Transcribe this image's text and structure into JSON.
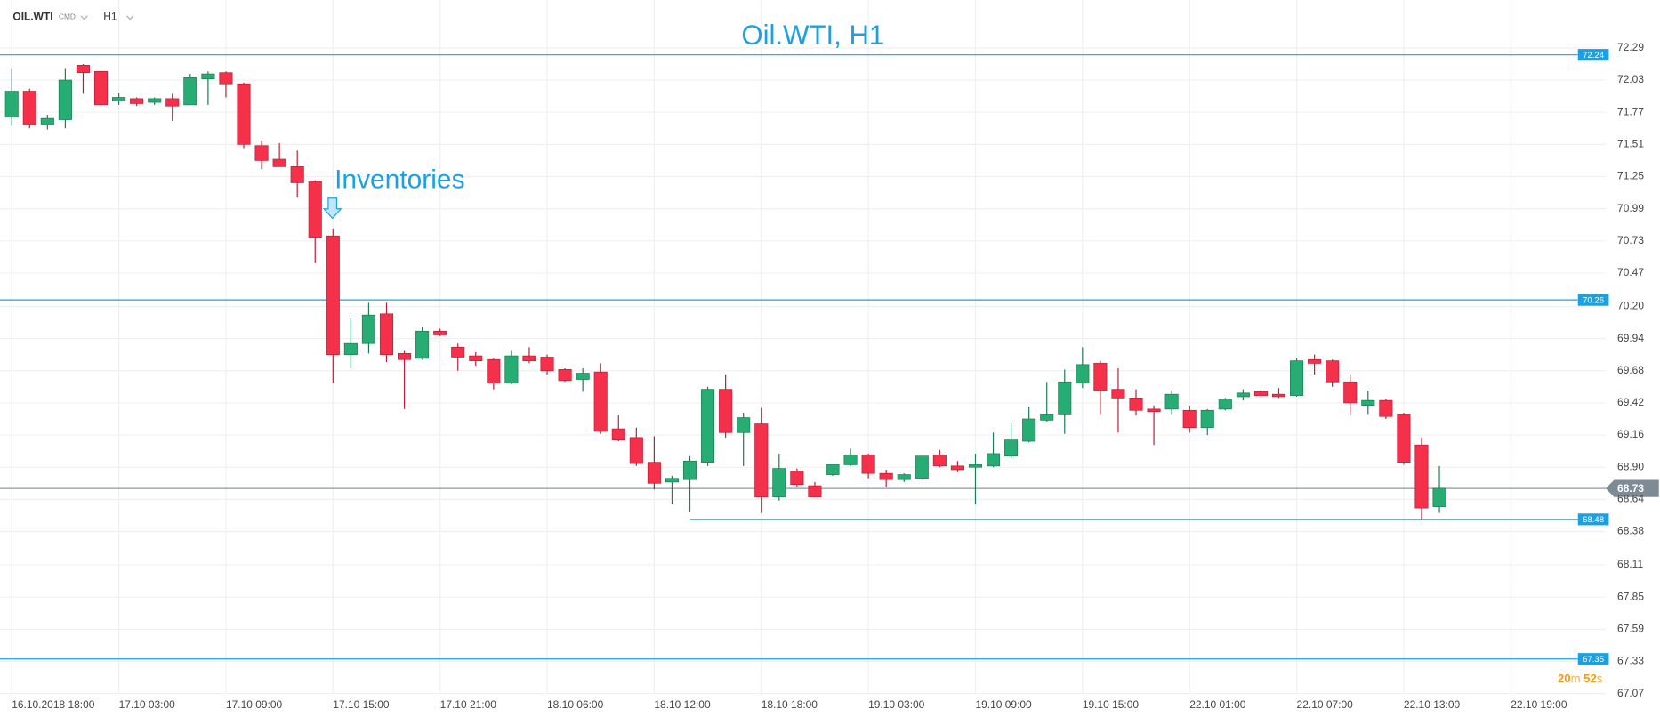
{
  "chart_data": {
    "type": "candlestick",
    "symbol": "OIL.WTI",
    "market": "CMD",
    "timeframe": "H1",
    "title": "Oil.WTI, H1",
    "annotation": "Inventories",
    "countdown": [
      "20",
      "m",
      "52",
      "s"
    ],
    "up_color": "#27ad74",
    "down_color": "#f5304a",
    "level_color": "#1ba1e2",
    "grid": true,
    "categories": [
      "16.10.2018 18:00",
      null,
      null,
      null,
      null,
      null,
      "17.10 03:00",
      null,
      null,
      null,
      null,
      null,
      "17.10 09:00",
      null,
      null,
      null,
      null,
      null,
      "17.10 15:00",
      null,
      null,
      null,
      null,
      null,
      "17.10 21:00",
      null,
      null,
      null,
      null,
      null,
      "18.10 06:00",
      null,
      null,
      null,
      null,
      null,
      "18.10 12:00",
      null,
      null,
      null,
      null,
      null,
      "18.10 18:00",
      null,
      null,
      null,
      null,
      null,
      "19.10 03:00",
      null,
      null,
      null,
      null,
      null,
      "19.10 09:00",
      null,
      null,
      null,
      null,
      null,
      "19.10 15:00",
      null,
      null,
      null,
      null,
      null,
      "22.10 01:00",
      null,
      null,
      null,
      null,
      null,
      "22.10 07:00",
      null,
      null,
      null,
      null,
      null,
      "22.10 13:00",
      null,
      null,
      null,
      null,
      null,
      "22.10 19:00"
    ],
    "open": [
      71.73,
      71.94,
      71.67,
      71.71,
      72.15,
      72.1,
      71.86,
      71.88,
      71.85,
      71.88,
      71.83,
      72.04,
      72.09,
      72.0,
      71.5,
      71.39,
      71.33,
      71.21,
      70.77,
      69.81,
      69.9,
      70.14,
      69.82,
      69.78,
      70.0,
      69.87,
      69.8,
      69.77,
      69.58,
      69.8,
      69.79,
      69.69,
      69.61,
      69.67,
      69.21,
      69.14,
      68.94,
      68.78,
      68.8,
      68.94,
      69.53,
      69.18,
      69.25,
      68.66,
      68.87,
      68.75,
      68.84,
      68.92,
      69.0,
      68.85,
      68.8,
      68.81,
      69.0,
      68.91,
      68.9,
      68.91,
      68.99,
      69.11,
      69.28,
      69.33,
      69.58,
      69.74,
      69.53,
      69.46,
      69.37,
      69.37,
      69.36,
      69.22,
      69.37,
      69.47,
      69.51,
      69.49,
      69.48,
      69.77,
      69.76,
      69.59,
      69.4,
      69.44,
      69.33,
      69.08,
      68.58,
      null,
      null,
      null,
      null
    ],
    "high": [
      72.12,
      71.96,
      71.75,
      72.12,
      72.16,
      72.11,
      71.93,
      71.89,
      71.89,
      71.92,
      72.08,
      72.1,
      72.1,
      72.01,
      71.54,
      71.52,
      71.46,
      71.22,
      70.83,
      70.11,
      70.23,
      70.23,
      69.84,
      70.03,
      70.02,
      69.9,
      69.83,
      69.78,
      69.84,
      69.87,
      69.81,
      69.7,
      69.7,
      69.74,
      69.32,
      69.22,
      69.15,
      68.83,
      68.99,
      69.55,
      69.65,
      69.34,
      69.38,
      69.01,
      68.89,
      68.78,
      68.92,
      69.05,
      69.01,
      68.88,
      68.85,
      68.99,
      69.04,
      68.95,
      69.01,
      69.18,
      69.26,
      69.39,
      69.59,
      69.69,
      69.87,
      69.76,
      69.7,
      69.53,
      69.4,
      69.52,
      69.4,
      69.37,
      69.46,
      69.53,
      69.53,
      69.54,
      69.78,
      69.81,
      69.77,
      69.65,
      69.52,
      69.45,
      69.34,
      69.14,
      68.91,
      null,
      null,
      null,
      null
    ],
    "low": [
      71.66,
      71.64,
      71.63,
      71.64,
      71.92,
      71.82,
      71.83,
      71.82,
      71.83,
      71.7,
      71.83,
      71.83,
      71.89,
      71.48,
      71.31,
      71.33,
      71.08,
      70.55,
      69.58,
      69.7,
      69.82,
      69.75,
      69.37,
      69.77,
      69.96,
      69.68,
      69.72,
      69.53,
      69.57,
      69.74,
      69.65,
      69.59,
      69.51,
      69.17,
      69.11,
      68.91,
      68.72,
      68.6,
      68.54,
      68.91,
      69.14,
      68.91,
      68.53,
      68.63,
      68.74,
      68.66,
      68.83,
      68.91,
      68.81,
      68.74,
      68.78,
      68.8,
      68.9,
      68.86,
      68.6,
      68.9,
      68.97,
      69.1,
      69.27,
      69.17,
      69.54,
      69.33,
      69.18,
      69.32,
      69.08,
      69.33,
      69.18,
      69.16,
      69.36,
      69.44,
      69.46,
      69.46,
      69.47,
      69.65,
      69.55,
      69.32,
      69.33,
      69.29,
      68.92,
      68.47,
      68.53,
      null,
      null,
      null,
      null
    ],
    "close": [
      71.94,
      71.67,
      71.72,
      72.03,
      72.09,
      71.83,
      71.89,
      71.84,
      71.88,
      71.82,
      72.05,
      72.08,
      72.0,
      71.51,
      71.38,
      71.33,
      71.2,
      70.76,
      69.81,
      69.9,
      70.13,
      69.81,
      69.77,
      70.0,
      69.97,
      69.79,
      69.76,
      69.58,
      69.8,
      69.76,
      69.68,
      69.6,
      69.66,
      69.19,
      69.12,
      68.93,
      68.77,
      68.81,
      68.95,
      69.53,
      69.18,
      69.3,
      68.66,
      68.89,
      68.76,
      68.66,
      68.92,
      69.0,
      68.85,
      68.8,
      68.84,
      68.99,
      68.91,
      68.88,
      68.92,
      69.01,
      69.12,
      69.29,
      69.33,
      69.59,
      69.73,
      69.52,
      69.46,
      69.36,
      69.35,
      69.49,
      69.22,
      69.36,
      69.45,
      69.5,
      69.48,
      69.47,
      69.76,
      69.74,
      69.59,
      69.42,
      69.44,
      69.31,
      68.94,
      68.57,
      68.73,
      null,
      null,
      null,
      null
    ],
    "levels": [
      72.24,
      70.26,
      68.48,
      67.35
    ],
    "current": 68.73,
    "ylim": [
      67.07,
      72.29
    ],
    "yticks": [
      72.29,
      72.03,
      71.77,
      71.51,
      71.25,
      70.99,
      70.73,
      70.47,
      {
        "value": 70.2,
        "label": "70.20"
      },
      69.94,
      69.68,
      69.42,
      69.16,
      {
        "value": 68.9,
        "label": "68.90"
      },
      68.64,
      68.38,
      68.11,
      67.85,
      67.59,
      67.33,
      67.07
    ]
  }
}
